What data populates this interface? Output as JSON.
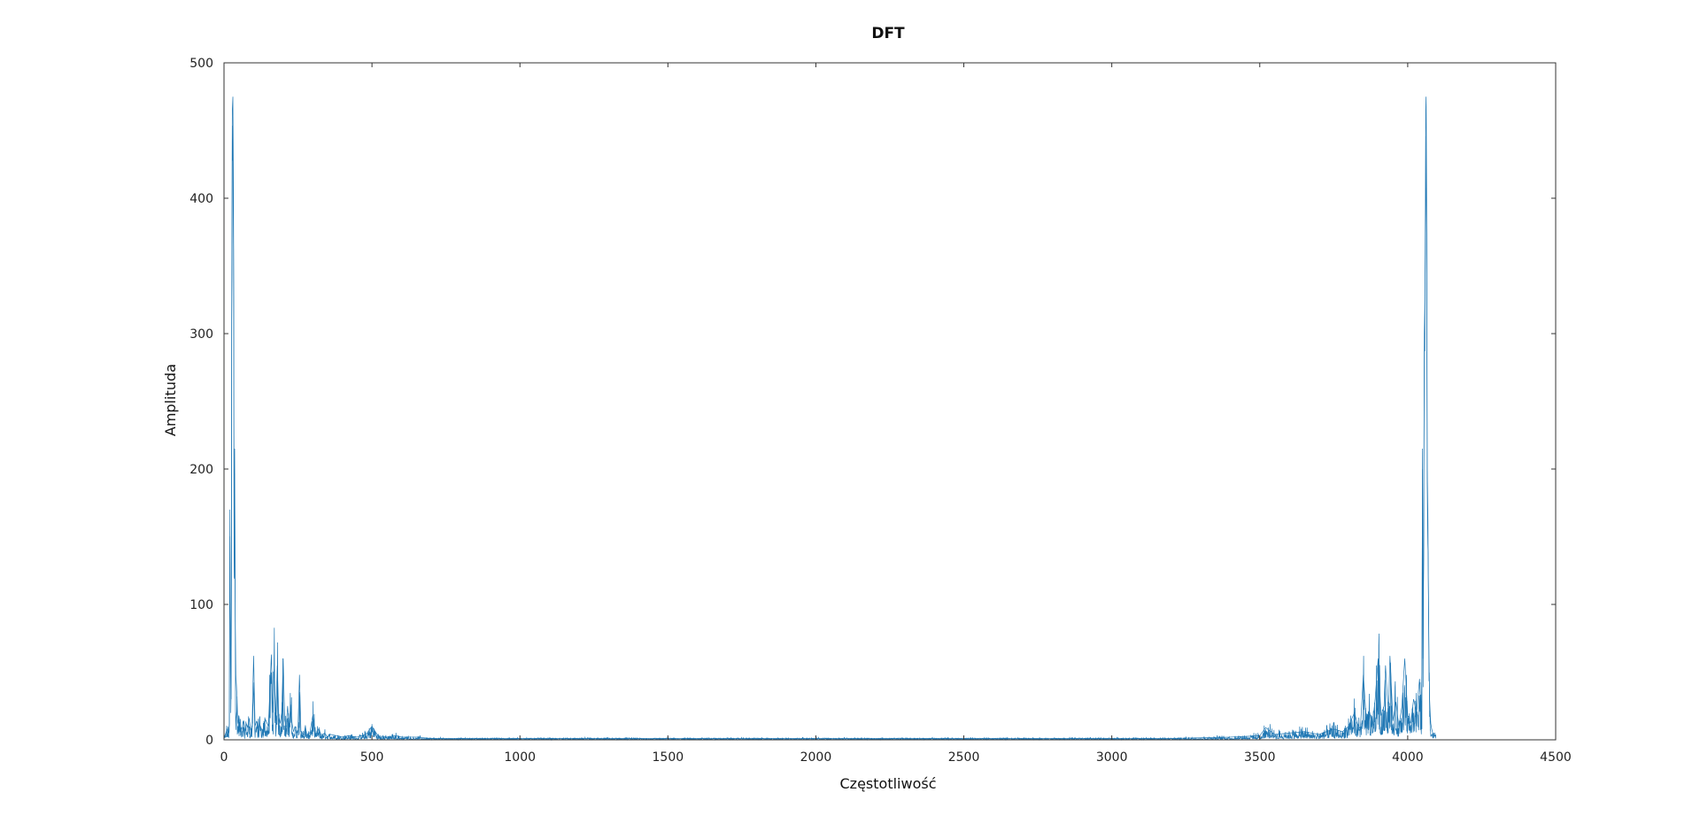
{
  "chart_data": {
    "type": "line",
    "title": "DFT",
    "xlabel": "Częstotliwość",
    "ylabel": "Amplituda",
    "xlim": [
      0,
      4500
    ],
    "ylim": [
      0,
      500
    ],
    "xticks": [
      0,
      500,
      1000,
      1500,
      2000,
      2500,
      3000,
      3500,
      4000,
      4500
    ],
    "yticks": [
      0,
      100,
      200,
      300,
      400,
      500
    ],
    "grid": false,
    "legend": "none",
    "n_points": 4096,
    "line_color": "#1f77b4",
    "series": [
      {
        "x": [
          0,
          5,
          10,
          15,
          18,
          20,
          22,
          24,
          25,
          26,
          28,
          30,
          31,
          32,
          33,
          34,
          35,
          36,
          38,
          40,
          42,
          44,
          46,
          48,
          50,
          55,
          60,
          65,
          70,
          75,
          80,
          85,
          90,
          95,
          100,
          105,
          110,
          115,
          120,
          130,
          140,
          150,
          160,
          165,
          170,
          175,
          180,
          185,
          190,
          195,
          200,
          205,
          210,
          215,
          220,
          225,
          230,
          235,
          240,
          245,
          250,
          255,
          260,
          270,
          275,
          280,
          290,
          300,
          310,
          320,
          330,
          340,
          350,
          360,
          380,
          400,
          420,
          450,
          480,
          500,
          520,
          550,
          580,
          600,
          650,
          700,
          800,
          900,
          1000,
          1200,
          1500,
          1800,
          2000,
          2048,
          2200,
          2500,
          2800,
          3000,
          3200,
          3400,
          3500,
          3520,
          3550,
          3600,
          3650,
          3700,
          3750,
          3780,
          3800,
          3820,
          3830,
          3840,
          3850,
          3860,
          3870,
          3880,
          3890,
          3900,
          3910,
          3920,
          3925,
          3930,
          3935,
          3940,
          3950,
          3960,
          3970,
          3980,
          3990,
          4000,
          4010,
          4020,
          4030,
          4040,
          4045,
          4048,
          4050,
          4052,
          4054,
          4056,
          4058,
          4060,
          4061,
          4062,
          4063,
          4064,
          4065,
          4066,
          4068,
          4070,
          4072,
          4074,
          4076,
          4078,
          4081,
          4086,
          4091,
          4095
        ],
        "y": [
          2,
          4,
          8,
          5,
          12,
          170,
          60,
          30,
          120,
          330,
          465,
          475,
          440,
          400,
          325,
          150,
          120,
          215,
          90,
          48,
          40,
          30,
          15,
          12,
          18,
          10,
          8,
          14,
          6,
          12,
          9,
          16,
          7,
          11,
          62,
          10,
          14,
          8,
          12,
          6,
          15,
          10,
          63,
          20,
          52,
          14,
          55,
          18,
          12,
          20,
          60,
          15,
          10,
          25,
          8,
          26,
          12,
          6,
          10,
          5,
          8,
          48,
          6,
          4,
          10,
          3,
          5,
          18,
          4,
          8,
          3,
          5,
          2,
          4,
          3,
          2,
          3,
          2,
          4,
          10,
          3,
          2,
          3,
          2,
          2,
          1,
          1,
          1,
          1,
          1,
          1,
          1,
          1,
          1,
          1,
          1,
          1,
          1,
          1,
          2,
          3,
          9,
          4,
          5,
          6,
          4,
          8,
          6,
          10,
          20,
          12,
          8,
          48,
          15,
          22,
          10,
          30,
          60,
          18,
          25,
          55,
          35,
          20,
          62,
          14,
          28,
          10,
          24,
          60,
          18,
          12,
          30,
          20,
          45,
          15,
          50,
          215,
          60,
          150,
          300,
          325,
          405,
          465,
          475,
          450,
          400,
          320,
          200,
          170,
          110,
          60,
          30,
          20,
          12,
          8,
          4,
          5,
          3
        ]
      }
    ]
  }
}
